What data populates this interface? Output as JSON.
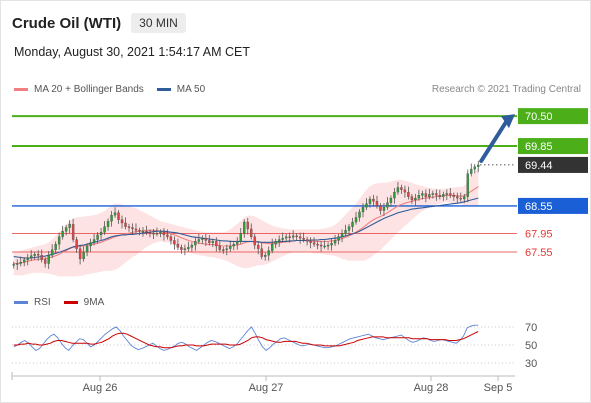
{
  "header": {
    "title": "Crude Oil (WTI)",
    "timeframe": "30 MIN"
  },
  "timestamp": "Monday, August 30, 2021 1:54:17 AM CET",
  "legend": {
    "ma20_label": "MA 20 + Bollinger Bands",
    "ma50_label": "MA 50",
    "ma20_color": "#f08080",
    "ma50_color": "#2f5c9a"
  },
  "source": "Research © 2021 Trading Central",
  "rsi_legend": {
    "rsi_label": "RSI",
    "ma_label": "9MA",
    "rsi_color": "#5b83d6",
    "ma_color": "#cc0000"
  },
  "chart_data": [
    {
      "type": "candlestick",
      "title": "Crude Oil (WTI)",
      "ylim": [
        67.05,
        70.85
      ],
      "x_ticks": [
        "Aug 26",
        "Aug 27",
        "Aug 28",
        "Sep 5"
      ],
      "levels": [
        {
          "value": 70.5,
          "label": "70.50",
          "kind": "resistance",
          "color": "#4caf1a",
          "line": "solid"
        },
        {
          "value": 69.85,
          "label": "69.85",
          "kind": "resistance",
          "color": "#4caf1a",
          "line": "solid"
        },
        {
          "value": 69.44,
          "label": "69.44",
          "kind": "last",
          "color": "#333333",
          "line": "dotted"
        },
        {
          "value": 68.55,
          "label": "68.55",
          "kind": "pivot",
          "color": "#1a5fd6",
          "line": "solid"
        },
        {
          "value": 67.95,
          "label": "67.95",
          "kind": "support",
          "color": "#e53935",
          "line": "solid"
        },
        {
          "value": 67.55,
          "label": "67.55",
          "kind": "support",
          "color": "#e53935",
          "line": "solid"
        }
      ],
      "close": [
        67.28,
        67.3,
        67.33,
        67.38,
        67.42,
        67.47,
        67.5,
        67.48,
        67.38,
        67.3,
        67.48,
        67.6,
        67.72,
        67.88,
        68.0,
        68.08,
        68.15,
        67.82,
        67.62,
        67.4,
        67.55,
        67.68,
        67.75,
        67.82,
        67.92,
        67.98,
        68.1,
        68.22,
        68.35,
        68.4,
        68.25,
        68.18,
        68.1,
        68.08,
        68.05,
        68.02,
        68.0,
        68.0,
        67.98,
        67.96,
        67.95,
        67.96,
        67.98,
        67.92,
        67.88,
        67.8,
        67.72,
        67.65,
        67.6,
        67.62,
        67.65,
        67.7,
        67.78,
        67.82,
        67.85,
        67.8,
        67.75,
        67.78,
        67.68,
        67.6,
        67.6,
        67.62,
        67.68,
        67.72,
        67.78,
        67.95,
        68.2,
        68.05,
        67.88,
        67.7,
        67.62,
        67.45,
        67.48,
        67.58,
        67.72,
        67.78,
        67.82,
        67.85,
        67.88,
        67.87,
        67.9,
        67.88,
        67.85,
        67.82,
        67.78,
        67.75,
        67.72,
        67.7,
        67.68,
        67.68,
        67.7,
        67.74,
        67.8,
        67.88,
        67.95,
        68.02,
        68.1,
        68.2,
        68.3,
        68.42,
        68.52,
        68.6,
        68.7,
        68.65,
        68.55,
        68.45,
        68.52,
        68.62,
        68.72,
        68.85,
        68.95,
        68.9,
        68.85,
        68.75,
        68.68,
        68.72,
        68.78,
        68.82,
        68.75,
        68.8,
        68.82,
        68.78,
        68.75,
        68.8,
        68.82,
        68.78,
        68.75,
        68.72,
        68.7,
        68.75,
        69.25,
        69.35,
        69.4,
        69.44
      ],
      "ma20": [
        67.3,
        67.3,
        67.31,
        67.33,
        67.35,
        67.37,
        67.38,
        67.39,
        67.4,
        67.4,
        67.42,
        67.44,
        67.47,
        67.5,
        67.54,
        67.58,
        67.62,
        67.65,
        67.66,
        67.67,
        67.68,
        67.7,
        67.71,
        67.72,
        67.74,
        67.76,
        67.79,
        67.82,
        67.85,
        67.88,
        67.9,
        67.92,
        67.94,
        67.96,
        67.98,
        67.99,
        68.0,
        68.01,
        68.02,
        68.02,
        68.02,
        68.01,
        68.0,
        67.98,
        67.97,
        67.95,
        67.92,
        67.89,
        67.86,
        67.83,
        67.8,
        67.78,
        67.76,
        67.74,
        67.73,
        67.72,
        67.71,
        67.71,
        67.7,
        67.69,
        67.68,
        67.68,
        67.68,
        67.69,
        67.7,
        67.72,
        67.75,
        67.77,
        67.78,
        67.78,
        67.77,
        67.75,
        67.74,
        67.73,
        67.73,
        67.74,
        67.75,
        67.76,
        67.77,
        67.78,
        67.79,
        67.8,
        67.8,
        67.8,
        67.8,
        67.79,
        67.78,
        67.78,
        67.78,
        67.78,
        67.78,
        67.79,
        67.8,
        67.82,
        67.84,
        67.87,
        67.9,
        67.94,
        67.98,
        68.03,
        68.08,
        68.14,
        68.2,
        68.25,
        68.29,
        68.32,
        68.36,
        68.4,
        68.45,
        68.5,
        68.55,
        68.58,
        68.61,
        68.63,
        68.65,
        68.67,
        68.69,
        68.71,
        68.72,
        68.73,
        68.74,
        68.75,
        68.76,
        68.77,
        68.78,
        68.78,
        68.78,
        68.77,
        68.76,
        68.77,
        68.82,
        68.87,
        68.92,
        68.97
      ],
      "ma50": [
        67.45,
        67.44,
        67.43,
        67.42,
        67.42,
        67.42,
        67.43,
        67.44,
        67.45,
        67.46,
        67.48,
        67.5,
        67.52,
        67.54,
        67.57,
        67.6,
        67.63,
        67.66,
        67.68,
        67.69,
        67.7,
        67.72,
        67.74,
        67.76,
        67.78,
        67.8,
        67.82,
        67.85,
        67.88,
        67.9,
        67.91,
        67.92,
        67.92,
        67.93,
        67.93,
        67.94,
        67.95,
        67.96,
        67.97,
        67.98,
        67.99,
        68.0,
        68.0,
        68.0,
        67.99,
        67.98,
        67.97,
        67.96,
        67.94,
        67.92,
        67.9,
        67.88,
        67.87,
        67.86,
        67.85,
        67.84,
        67.83,
        67.82,
        67.81,
        67.8,
        67.79,
        67.79,
        67.78,
        67.78,
        67.78,
        67.78,
        67.78,
        67.78,
        67.78,
        67.77,
        67.77,
        67.76,
        67.76,
        67.76,
        67.76,
        67.77,
        67.77,
        67.78,
        67.78,
        67.79,
        67.79,
        67.8,
        67.8,
        67.8,
        67.8,
        67.81,
        67.81,
        67.81,
        67.82,
        67.82,
        67.83,
        67.84,
        67.85,
        67.86,
        67.88,
        67.9,
        67.92,
        67.94,
        67.97,
        68.0,
        68.04,
        68.08,
        68.12,
        68.16,
        68.2,
        68.24,
        68.28,
        68.31,
        68.34,
        68.37,
        68.4,
        68.42,
        68.44,
        68.46,
        68.48,
        68.49,
        68.5,
        68.51,
        68.52,
        68.53,
        68.54,
        68.55,
        68.56,
        68.57,
        68.58,
        68.59,
        68.6,
        68.61,
        68.62,
        68.64,
        68.66,
        68.68,
        68.7,
        68.72
      ],
      "bb_upper": [
        67.55,
        67.56,
        67.58,
        67.6,
        67.62,
        67.64,
        67.66,
        67.68,
        67.7,
        67.72,
        67.76,
        67.82,
        67.9,
        67.98,
        68.06,
        68.14,
        68.22,
        68.28,
        68.3,
        68.31,
        68.32,
        68.33,
        68.34,
        68.35,
        68.37,
        68.4,
        68.44,
        68.5,
        68.56,
        68.6,
        68.6,
        68.58,
        68.56,
        68.54,
        68.52,
        68.5,
        68.46,
        68.42,
        68.38,
        68.34,
        68.3,
        68.26,
        68.22,
        68.2,
        68.18,
        68.16,
        68.14,
        68.12,
        68.1,
        68.08,
        68.06,
        68.04,
        68.02,
        68.0,
        67.99,
        67.98,
        67.98,
        67.98,
        67.98,
        67.98,
        67.98,
        68.0,
        68.04,
        68.1,
        68.16,
        68.22,
        68.3,
        68.34,
        68.34,
        68.32,
        68.28,
        68.24,
        68.2,
        68.16,
        68.12,
        68.1,
        68.08,
        68.06,
        68.05,
        68.04,
        68.04,
        68.04,
        68.04,
        68.04,
        68.04,
        68.04,
        68.04,
        68.04,
        68.05,
        68.06,
        68.08,
        68.1,
        68.14,
        68.2,
        68.28,
        68.36,
        68.44,
        68.52,
        68.6,
        68.7,
        68.8,
        68.9,
        68.98,
        69.02,
        69.04,
        69.05,
        69.05,
        69.06,
        69.08,
        69.1,
        69.12,
        69.12,
        69.1,
        69.08,
        69.05,
        69.02,
        69.0,
        68.98,
        68.96,
        68.94,
        68.93,
        68.92,
        68.92,
        68.92,
        68.93,
        68.94,
        68.95,
        68.96,
        68.96,
        68.98,
        69.1,
        69.2,
        69.3,
        69.38
      ],
      "bb_lower": [
        67.05,
        67.04,
        67.04,
        67.05,
        67.07,
        67.09,
        67.1,
        67.1,
        67.1,
        67.08,
        67.08,
        67.06,
        67.04,
        67.02,
        67.02,
        67.02,
        67.02,
        67.02,
        67.02,
        67.03,
        67.04,
        67.07,
        67.08,
        67.09,
        67.11,
        67.12,
        67.14,
        67.14,
        67.14,
        67.16,
        67.2,
        67.26,
        67.32,
        67.38,
        67.44,
        67.48,
        67.54,
        67.6,
        67.66,
        67.7,
        67.74,
        67.76,
        67.78,
        67.76,
        67.76,
        67.74,
        67.7,
        67.66,
        67.62,
        67.58,
        67.54,
        67.52,
        67.5,
        67.48,
        67.47,
        67.46,
        67.44,
        67.44,
        67.42,
        67.4,
        67.38,
        67.36,
        67.32,
        67.28,
        67.24,
        67.22,
        67.2,
        67.2,
        67.22,
        67.24,
        67.26,
        67.26,
        67.28,
        67.3,
        67.34,
        67.38,
        67.42,
        67.46,
        67.49,
        67.52,
        67.54,
        67.56,
        67.56,
        67.56,
        67.56,
        67.54,
        67.52,
        67.52,
        67.51,
        67.5,
        67.48,
        67.48,
        67.46,
        67.44,
        67.4,
        67.38,
        67.36,
        67.36,
        67.36,
        67.36,
        67.36,
        67.38,
        67.42,
        67.48,
        67.54,
        67.59,
        67.67,
        67.74,
        67.82,
        67.9,
        67.98,
        68.04,
        68.12,
        68.18,
        68.25,
        68.32,
        68.38,
        68.44,
        68.48,
        68.52,
        68.55,
        68.58,
        68.59,
        68.62,
        68.63,
        68.62,
        68.61,
        68.6,
        68.6,
        68.56,
        68.54,
        68.54,
        68.54,
        68.56
      ]
    },
    {
      "type": "line",
      "title": "RSI",
      "ylim": [
        20,
        80
      ],
      "y_ticks": [
        70,
        50,
        30
      ],
      "series": [
        {
          "name": "RSI",
          "values": [
            48,
            50,
            53,
            55,
            52,
            48,
            44,
            46,
            51,
            56,
            60,
            62,
            58,
            52,
            47,
            44,
            49,
            53,
            57,
            56,
            52,
            48,
            50,
            54,
            58,
            62,
            65,
            68,
            70,
            66,
            60,
            55,
            50,
            47,
            45,
            46,
            48,
            50,
            52,
            49,
            46,
            44,
            45,
            47,
            49,
            52,
            53,
            51,
            48,
            46,
            44,
            47,
            50,
            53,
            55,
            54,
            52,
            50,
            48,
            46,
            48,
            51,
            56,
            61,
            66,
            70,
            63,
            55,
            48,
            44,
            47,
            51,
            54,
            57,
            58,
            56,
            54,
            52,
            50,
            49,
            50,
            51,
            50,
            49,
            48,
            47,
            47,
            48,
            49,
            51,
            53,
            55,
            57,
            58,
            59,
            60,
            61,
            62,
            60,
            58,
            57,
            56,
            57,
            58,
            59,
            60,
            61,
            58,
            55,
            53,
            54,
            56,
            58,
            57,
            55,
            54,
            55,
            56,
            55,
            54,
            53,
            52,
            55,
            60,
            69,
            71,
            72,
            72
          ]
        },
        {
          "name": "9MA",
          "values": [
            50,
            50,
            51,
            51,
            52,
            51,
            51,
            50,
            50,
            51,
            52,
            54,
            55,
            55,
            54,
            53,
            52,
            52,
            52,
            52,
            52,
            51,
            51,
            52,
            53,
            55,
            57,
            60,
            62,
            63,
            63,
            62,
            60,
            58,
            56,
            54,
            52,
            50,
            49,
            48,
            48,
            47,
            47,
            47,
            48,
            49,
            49,
            50,
            50,
            50,
            49,
            49,
            49,
            50,
            51,
            51,
            51,
            51,
            51,
            50,
            50,
            50,
            51,
            53,
            55,
            58,
            59,
            59,
            58,
            56,
            55,
            54,
            53,
            53,
            54,
            54,
            54,
            54,
            53,
            52,
            52,
            51,
            50,
            50,
            50,
            49,
            49,
            49,
            49,
            49,
            50,
            51,
            52,
            53,
            55,
            56,
            57,
            58,
            59,
            59,
            59,
            59,
            58,
            58,
            58,
            58,
            58,
            58,
            58,
            57,
            57,
            57,
            57,
            57,
            56,
            56,
            56,
            56,
            56,
            55,
            55,
            55,
            56,
            57,
            59,
            61,
            63,
            65
          ]
        }
      ]
    }
  ]
}
